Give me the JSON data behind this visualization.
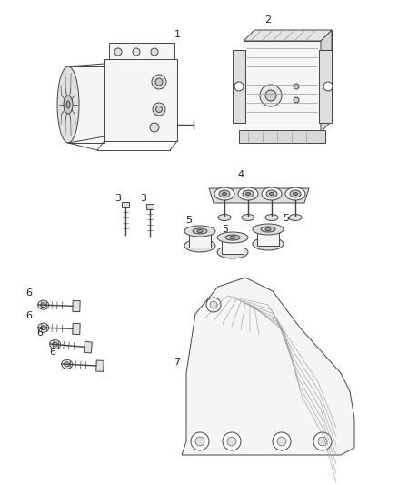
{
  "background_color": "#ffffff",
  "line_color": "#444444",
  "label_color": "#222222",
  "fig_width": 4.38,
  "fig_height": 5.33,
  "dpi": 100
}
